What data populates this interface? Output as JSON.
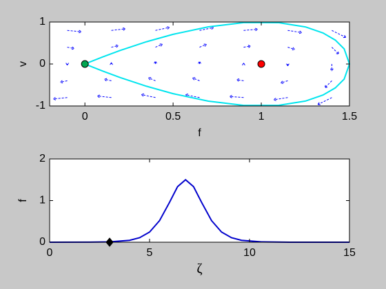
{
  "chart_data": [
    {
      "type": "line",
      "xlabel": "f",
      "ylabel": "v",
      "xlim": [
        -0.2,
        1.5
      ],
      "ylim": [
        -1,
        1
      ],
      "xticks": [
        0,
        0.5,
        1,
        1.5
      ],
      "yticks": [
        -1,
        0,
        1
      ],
      "quiver": {
        "color": "#0000ff",
        "x": [
          -0.1,
          0.15,
          0.4,
          0.65,
          0.9,
          1.15,
          1.4,
          -0.1,
          0.15,
          0.4,
          0.65,
          0.9,
          1.15,
          1.4,
          -0.1,
          0.15,
          0.4,
          0.65,
          0.9,
          1.15,
          1.4,
          -0.1,
          0.15,
          0.4,
          0.65,
          0.9,
          1.15,
          1.4,
          -0.1,
          0.15,
          0.4,
          0.65,
          0.9,
          1.15,
          1.4
        ],
        "y": [
          -0.8,
          -0.8,
          -0.8,
          -0.8,
          -0.8,
          -0.8,
          -0.8,
          -0.4,
          -0.4,
          -0.4,
          -0.4,
          -0.4,
          -0.4,
          -0.4,
          0,
          0,
          0,
          0,
          0,
          0,
          0,
          0.4,
          0.4,
          0.4,
          0.4,
          0.4,
          0.4,
          0.4,
          0.8,
          0.8,
          0.8,
          0.8,
          0.8,
          0.8,
          0.8
        ],
        "u": [
          -0.8,
          -0.8,
          -0.8,
          -0.8,
          -0.8,
          -0.8,
          -0.8,
          -0.4,
          -0.4,
          -0.4,
          -0.4,
          -0.4,
          -0.4,
          -0.4,
          0,
          0,
          0,
          0,
          0,
          0,
          0,
          0.4,
          0.4,
          0.4,
          0.4,
          0.4,
          0.4,
          0.4,
          0.8,
          0.8,
          0.8,
          0.8,
          0.8,
          0.8,
          0.8
        ],
        "v": [
          -0.33,
          0.38,
          0.72,
          0.68,
          0.27,
          -0.52,
          -1.68,
          -0.33,
          0.38,
          0.72,
          0.68,
          0.27,
          -0.52,
          -1.68,
          -0.33,
          0.38,
          0.72,
          0.68,
          0.27,
          -0.52,
          -1.68,
          -0.33,
          0.38,
          0.72,
          0.68,
          0.27,
          -0.52,
          -1.68,
          -0.33,
          0.38,
          0.72,
          0.68,
          0.27,
          -0.52,
          -1.68
        ]
      },
      "series": [
        {
          "color": "#00e5ee",
          "x": [
            0,
            0.1,
            0.2,
            0.35,
            0.5,
            0.7,
            0.9,
            1.1,
            1.25,
            1.35,
            1.42,
            1.47,
            1.5,
            1.47,
            1.42,
            1.35,
            1.25,
            1.1,
            0.9,
            0.7,
            0.5,
            0.35,
            0.2,
            0.1,
            0
          ],
          "values": [
            0,
            0.167,
            0.322,
            0.531,
            0.707,
            0.885,
            0.986,
            0.984,
            0.884,
            0.739,
            0.568,
            0.36,
            0,
            -0.36,
            -0.568,
            -0.739,
            -0.884,
            -0.984,
            -0.986,
            -0.885,
            -0.707,
            -0.531,
            -0.322,
            -0.167,
            0
          ]
        }
      ],
      "markers": [
        {
          "x": 0,
          "y": 0,
          "color": "#00a651",
          "shape": "circle"
        },
        {
          "x": 1,
          "y": 0,
          "color": "#ff0000",
          "shape": "circle"
        }
      ]
    },
    {
      "type": "line",
      "xlabel": "ζ",
      "ylabel": "f",
      "xlim": [
        0,
        15
      ],
      "ylim": [
        0,
        2
      ],
      "xticks": [
        0,
        5,
        10,
        15
      ],
      "yticks": [
        0,
        1,
        2
      ],
      "series": [
        {
          "color": "#0000cc",
          "x": [
            0,
            2,
            3,
            4,
            4.5,
            5,
            5.5,
            6,
            6.4,
            6.8,
            7.2,
            7.6,
            8.1,
            8.6,
            9.1,
            9.6,
            10.6,
            12,
            15
          ],
          "values": [
            0,
            0.0015,
            0.0084,
            0.046,
            0.108,
            0.244,
            0.519,
            0.96,
            1.335,
            1.5,
            1.335,
            0.96,
            0.519,
            0.244,
            0.108,
            0.046,
            0.0084,
            0.0005,
            0
          ]
        }
      ],
      "markers": [
        {
          "x": 3,
          "y": 0,
          "color": "#000000",
          "shape": "diamond"
        }
      ]
    }
  ]
}
